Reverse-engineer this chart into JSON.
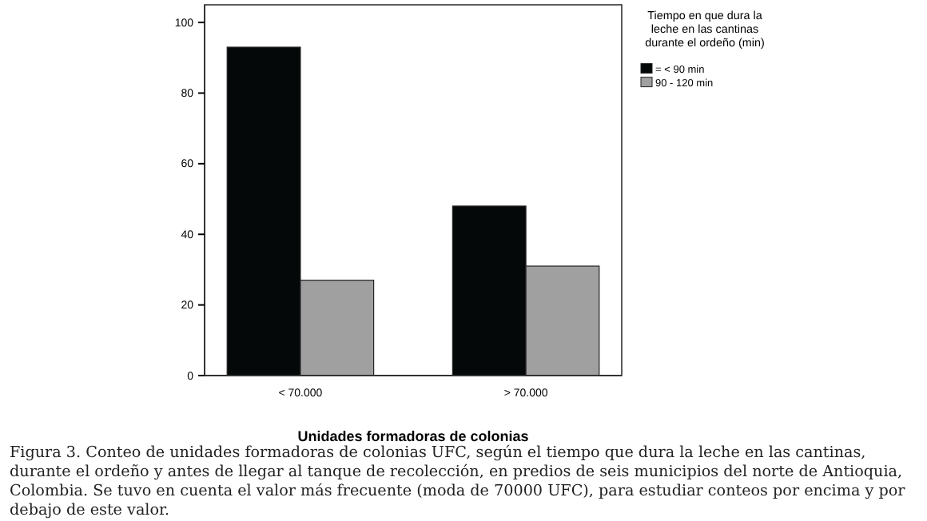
{
  "chart_data": {
    "type": "bar",
    "xlabel": "Unidades formadoras de colonias",
    "legend_title": "Tiempo en que dura la leche en las cantinas durante el ordeño (min)",
    "categories": [
      "< 70.000",
      "> 70.000"
    ],
    "series": [
      {
        "name": "= < 90 min",
        "color": "#050808",
        "values": [
          93,
          48
        ]
      },
      {
        "name": "90 - 120 min",
        "color": "#a0a0a0",
        "values": [
          27,
          31
        ]
      }
    ],
    "ylim": [
      0,
      105
    ],
    "yticks": [
      0,
      20,
      40,
      60,
      80,
      100
    ],
    "grid": false,
    "legend": "top right",
    "annotations": [
      "Figura 3. Conteo de unidades formadoras de colonias UFC, según el tiempo que dura la leche en las cantinas, durante el ordeño y antes de llegar al tanque de recolección, en predios de seis municipios del norte de Antioquia, Colombia.  Se tuvo en cuenta el valor más frecuente (moda de 70000 UFC), para estudiar conteos por encima y por debajo de este valor."
    ]
  }
}
